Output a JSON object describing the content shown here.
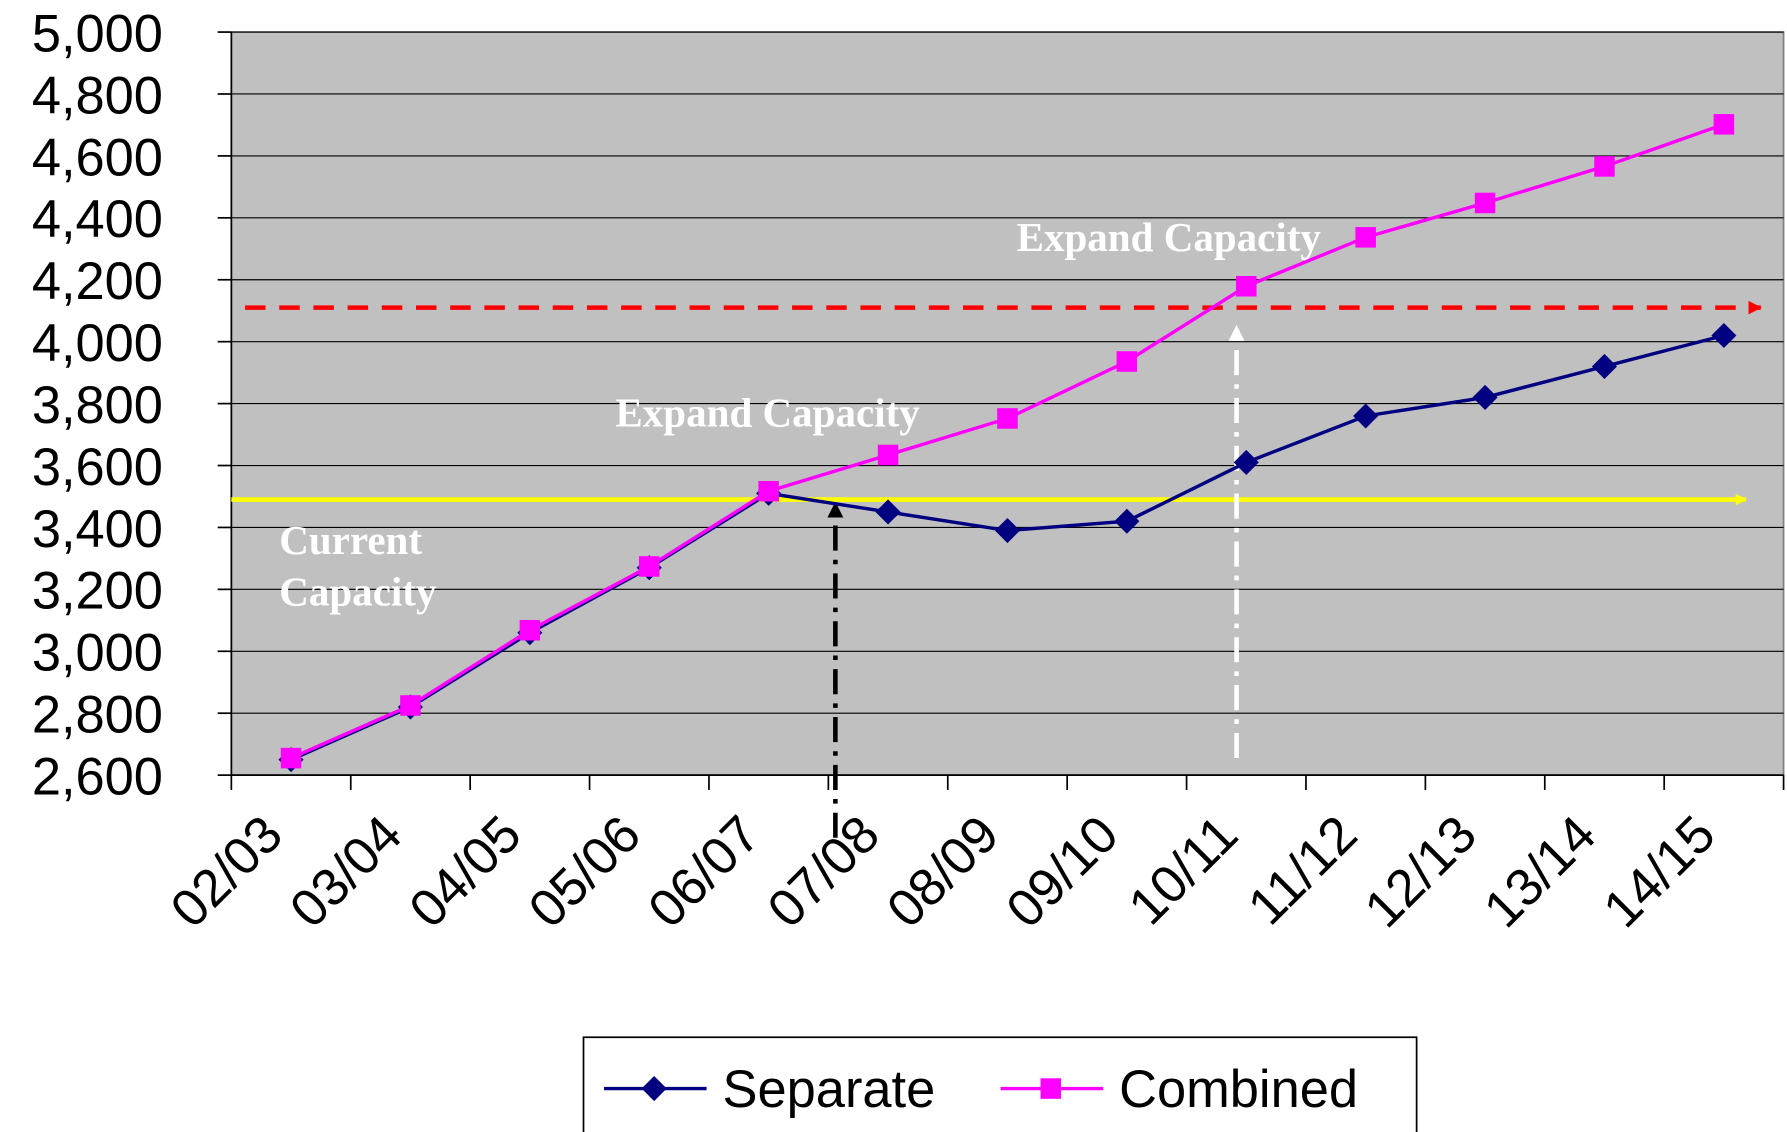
{
  "chart_data": {
    "type": "line",
    "categories": [
      "02/03",
      "03/04",
      "04/05",
      "05/06",
      "06/07",
      "07/08",
      "08/09",
      "09/10",
      "10/11",
      "11/12",
      "12/13",
      "13/14",
      "14/15"
    ],
    "series": [
      {
        "name": "Separate",
        "color": "#000080",
        "marker": "diamond",
        "values": [
          2650,
          2820,
          3060,
          3270,
          3510,
          3450,
          3390,
          3420,
          3610,
          3760,
          3820,
          3920,
          4020
        ]
      },
      {
        "name": "Combined",
        "color": "#ff00ff",
        "marker": "square",
        "values": [
          2655,
          2825,
          3068,
          3274,
          3517,
          3634,
          3752,
          3936,
          4179,
          4337,
          4448,
          4566,
          4702
        ]
      }
    ],
    "ylim": [
      2600,
      5000
    ],
    "yticks": [
      {
        "value": 2600,
        "label": "2,600"
      },
      {
        "value": 2800,
        "label": "2,800"
      },
      {
        "value": 3000,
        "label": "3,000"
      },
      {
        "value": 3200,
        "label": "3,200"
      },
      {
        "value": 3400,
        "label": "3,400"
      },
      {
        "value": 3600,
        "label": "3,600"
      },
      {
        "value": 3800,
        "label": "3,800"
      },
      {
        "value": 4000,
        "label": "4,000"
      },
      {
        "value": 4200,
        "label": "4,200"
      },
      {
        "value": 4400,
        "label": "4,400"
      },
      {
        "value": 4600,
        "label": "4,600"
      },
      {
        "value": 4800,
        "label": "4,800"
      },
      {
        "value": 5000,
        "label": "5,000"
      }
    ],
    "grid": true,
    "reference_lines": [
      {
        "value": 3490,
        "color": "#ffff00",
        "style": "solid"
      },
      {
        "value": 4110,
        "color": "#ff0000",
        "style": "dashed"
      }
    ],
    "annotations": [
      {
        "text": "Current Capacity"
      },
      {
        "text": "Expand Capacity"
      },
      {
        "text": "Expand Capacity"
      }
    ],
    "legend": "bottom"
  }
}
